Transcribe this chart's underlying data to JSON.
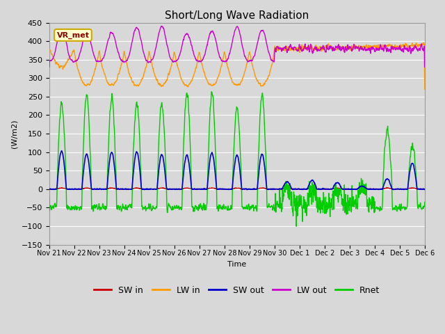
{
  "title": "Short/Long Wave Radiation",
  "ylabel": "(W/m2)",
  "xlabel": "Time",
  "ylim": [
    -150,
    450
  ],
  "yticks": [
    -150,
    -100,
    -50,
    0,
    50,
    100,
    150,
    200,
    250,
    300,
    350,
    400,
    450
  ],
  "bg_color": "#d8d8d8",
  "plot_bg_color": "#d8d8d8",
  "grid_color": "white",
  "sw_in_color": "#cc0000",
  "lw_in_color": "#ff9900",
  "sw_out_color": "#0000cc",
  "lw_out_color": "#cc00cc",
  "rnet_color": "#00cc00",
  "station_label": "VR_met",
  "num_days": 15,
  "pts_per_day": 144,
  "tick_labels": [
    "Nov 21",
    "Nov 22",
    "Nov 23",
    "Nov 24",
    "Nov 25",
    "Nov 26",
    "Nov 27",
    "Nov 28",
    "Nov 29",
    "Nov 30",
    "Dec 1",
    "Dec 2",
    "Dec 3",
    "Dec 4",
    "Dec 5",
    "Dec 6"
  ]
}
